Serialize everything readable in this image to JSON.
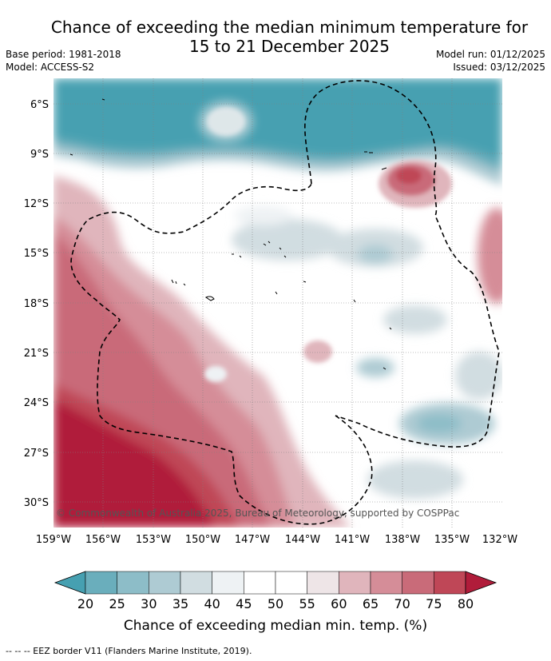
{
  "title_line1": "Chance of exceeding the median minimum temperature for",
  "title_line2": "15 to 21 December 2025",
  "base_period": "Base period: 1981-2018",
  "model": "Model: ACCESS-S2",
  "model_run": "Model run: 01/12/2025",
  "issued": "Issued: 03/12/2025",
  "lat_labels": [
    "6°S",
    "9°S",
    "12°S",
    "15°S",
    "18°S",
    "21°S",
    "24°S",
    "27°S",
    "30°S"
  ],
  "lon_labels": [
    "159°W",
    "156°W",
    "153°W",
    "150°W",
    "147°W",
    "144°W",
    "141°W",
    "138°W",
    "135°W",
    "132°W"
  ],
  "copyright": "© Commonwealth of Australia 2025, Bureau of Meteorology, supported by COSPPac",
  "colorbar": {
    "labels": [
      "20",
      "25",
      "30",
      "35",
      "40",
      "45",
      "50",
      "55",
      "60",
      "65",
      "70",
      "75",
      "80"
    ],
    "colors": [
      "#46a0b1",
      "#6aaebc",
      "#8dbdc8",
      "#aecbd3",
      "#d1dde1",
      "#eef2f4",
      "#ffffff",
      "#ffffff",
      "#eee5e7",
      "#e0b5bc",
      "#d58d98",
      "#c96b79",
      "#bf4757",
      "#b01c3a"
    ],
    "title": "Chance of exceeding median min. temp. (%)"
  },
  "footer": "--  --  -- EEZ border V11 (Flanders Marine Institute, 2019)."
}
